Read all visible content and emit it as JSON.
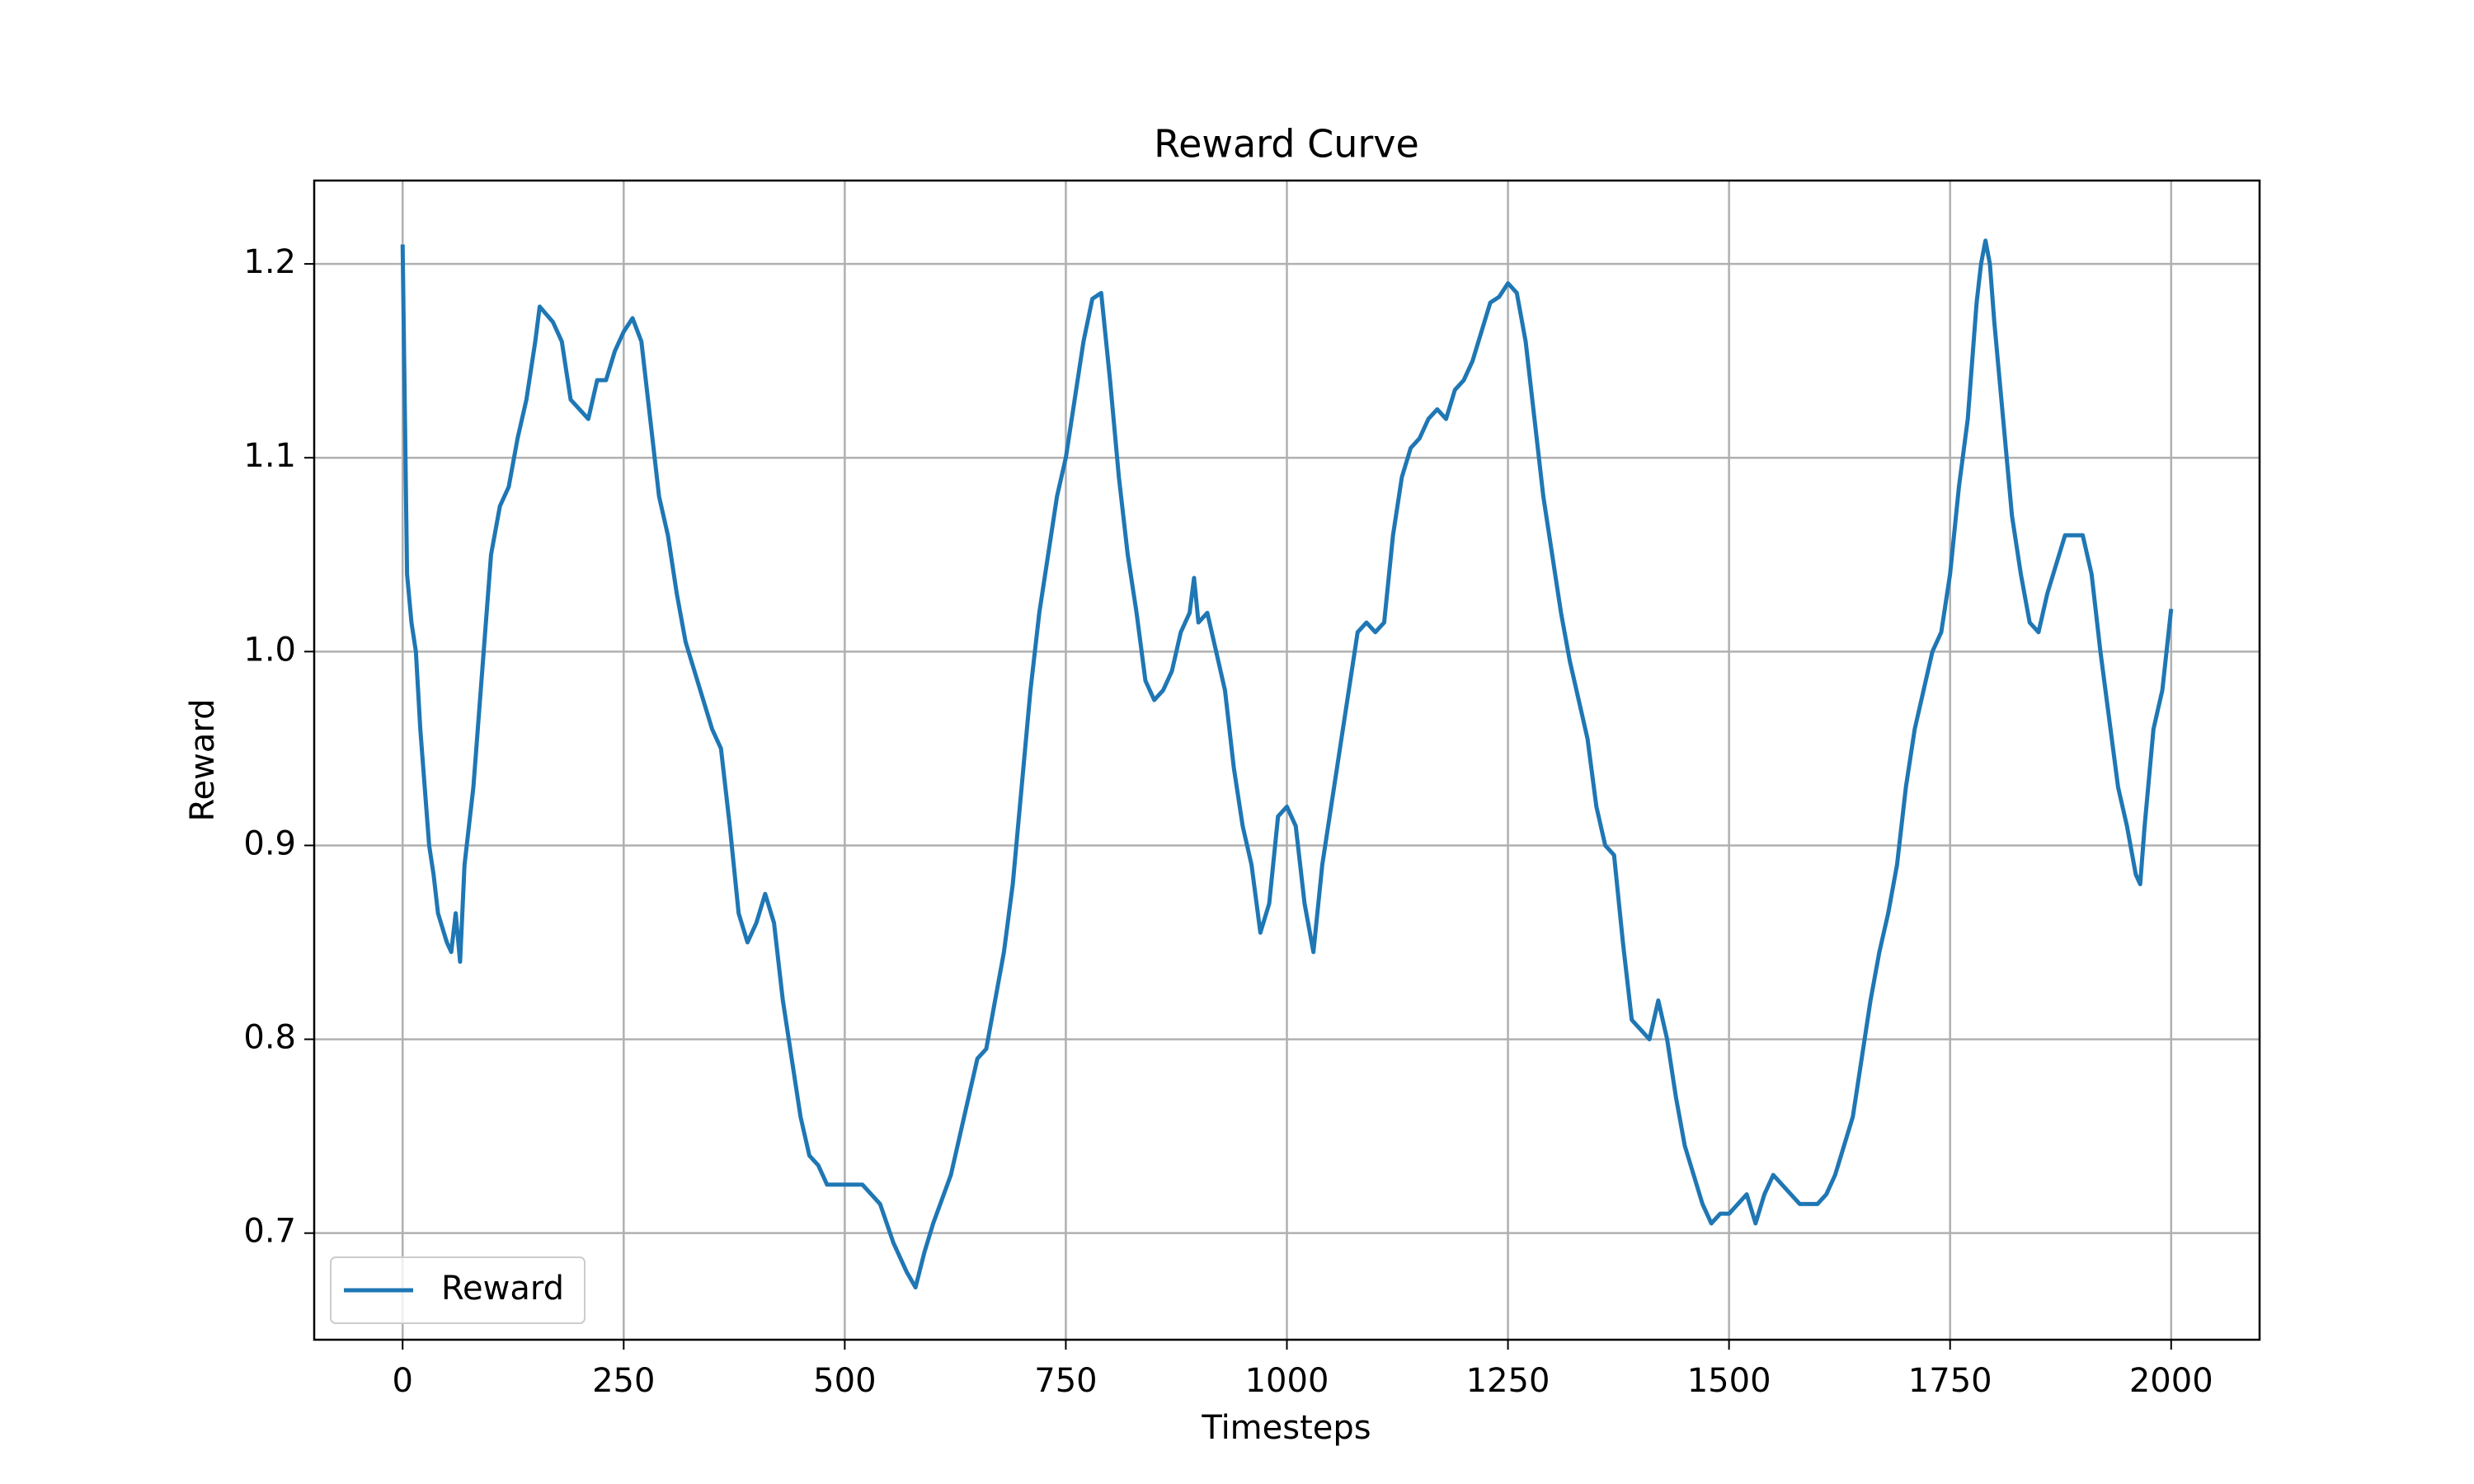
{
  "chart_data": {
    "type": "line",
    "title": "Reward Curve",
    "x_label": "Timesteps",
    "y_label": "Reward",
    "xlim": [
      -100,
      2100
    ],
    "ylim": [
      0.645,
      1.243
    ],
    "xticks": [
      0,
      250,
      500,
      750,
      1000,
      1250,
      1500,
      1750,
      2000
    ],
    "yticks": [
      0.7,
      0.8,
      0.9,
      {
        "value": 1,
        "label": "1.0"
      },
      1.1,
      1.2
    ],
    "grid": true,
    "legend": "lower left",
    "x": [
      0,
      5,
      10,
      15,
      20,
      25,
      30,
      35,
      40,
      50,
      55,
      60,
      65,
      70,
      80,
      90,
      100,
      110,
      120,
      130,
      140,
      150,
      155,
      170,
      180,
      190,
      200,
      210,
      220,
      230,
      240,
      250,
      260,
      270,
      280,
      290,
      300,
      310,
      320,
      330,
      340,
      350,
      360,
      370,
      380,
      390,
      400,
      410,
      420,
      430,
      440,
      450,
      460,
      470,
      480,
      500,
      520,
      540,
      555,
      570,
      580,
      590,
      600,
      620,
      640,
      650,
      660,
      670,
      680,
      690,
      700,
      710,
      720,
      730,
      740,
      750,
      760,
      770,
      780,
      790,
      800,
      810,
      820,
      830,
      840,
      850,
      860,
      870,
      880,
      890,
      895,
      900,
      910,
      920,
      930,
      940,
      950,
      960,
      970,
      980,
      990,
      1000,
      1010,
      1020,
      1030,
      1040,
      1050,
      1060,
      1070,
      1080,
      1090,
      1100,
      1110,
      1120,
      1130,
      1140,
      1150,
      1160,
      1170,
      1180,
      1190,
      1200,
      1210,
      1220,
      1230,
      1240,
      1250,
      1260,
      1270,
      1280,
      1290,
      1300,
      1310,
      1320,
      1330,
      1340,
      1350,
      1360,
      1370,
      1380,
      1390,
      1400,
      1410,
      1420,
      1430,
      1440,
      1450,
      1460,
      1470,
      1480,
      1490,
      1500,
      1510,
      1520,
      1530,
      1540,
      1550,
      1560,
      1570,
      1580,
      1590,
      1600,
      1610,
      1620,
      1640,
      1650,
      1660,
      1670,
      1680,
      1690,
      1700,
      1710,
      1720,
      1730,
      1740,
      1750,
      1760,
      1770,
      1780,
      1785,
      1790,
      1795,
      1800,
      1810,
      1820,
      1830,
      1840,
      1850,
      1860,
      1870,
      1880,
      1890,
      1900,
      1910,
      1920,
      1930,
      1940,
      1950,
      1960,
      1965,
      1970,
      1980,
      1990,
      2000
    ],
    "series": [
      {
        "name": "Reward",
        "color": "#1f77b4",
        "values": [
          1.21,
          1.04,
          1.015,
          1.0,
          0.96,
          0.93,
          0.9,
          0.885,
          0.865,
          0.85,
          0.845,
          0.865,
          0.84,
          0.89,
          0.93,
          0.99,
          1.05,
          1.075,
          1.085,
          1.11,
          1.13,
          1.16,
          1.178,
          1.17,
          1.16,
          1.13,
          1.125,
          1.12,
          1.14,
          1.14,
          1.155,
          1.165,
          1.172,
          1.16,
          1.12,
          1.08,
          1.06,
          1.03,
          1.005,
          0.99,
          0.975,
          0.96,
          0.95,
          0.91,
          0.865,
          0.85,
          0.86,
          0.875,
          0.86,
          0.82,
          0.79,
          0.76,
          0.74,
          0.735,
          0.725,
          0.725,
          0.725,
          0.715,
          0.695,
          0.68,
          0.672,
          0.69,
          0.705,
          0.73,
          0.77,
          0.79,
          0.795,
          0.82,
          0.845,
          0.88,
          0.93,
          0.98,
          1.02,
          1.05,
          1.08,
          1.1,
          1.13,
          1.16,
          1.182,
          1.185,
          1.14,
          1.09,
          1.05,
          1.02,
          0.985,
          0.975,
          0.98,
          0.99,
          1.01,
          1.02,
          1.038,
          1.015,
          1.02,
          1.0,
          0.98,
          0.94,
          0.91,
          0.89,
          0.855,
          0.87,
          0.915,
          0.92,
          0.91,
          0.87,
          0.845,
          0.89,
          0.92,
          0.95,
          0.98,
          1.01,
          1.015,
          1.01,
          1.015,
          1.06,
          1.09,
          1.105,
          1.11,
          1.12,
          1.125,
          1.12,
          1.135,
          1.14,
          1.15,
          1.165,
          1.18,
          1.183,
          1.19,
          1.185,
          1.16,
          1.12,
          1.08,
          1.05,
          1.02,
          0.995,
          0.975,
          0.955,
          0.92,
          0.9,
          0.895,
          0.85,
          0.81,
          0.805,
          0.8,
          0.82,
          0.8,
          0.77,
          0.745,
          0.73,
          0.715,
          0.705,
          0.71,
          0.71,
          0.715,
          0.72,
          0.705,
          0.72,
          0.73,
          0.725,
          0.72,
          0.715,
          0.715,
          0.715,
          0.72,
          0.73,
          0.76,
          0.79,
          0.82,
          0.845,
          0.865,
          0.89,
          0.93,
          0.96,
          0.98,
          1.0,
          1.01,
          1.04,
          1.085,
          1.12,
          1.18,
          1.2,
          1.212,
          1.2,
          1.17,
          1.12,
          1.07,
          1.04,
          1.015,
          1.01,
          1.03,
          1.045,
          1.06,
          1.06,
          1.06,
          1.04,
          1.0,
          0.965,
          0.93,
          0.91,
          0.885,
          0.88,
          0.91,
          0.96,
          0.98,
          1.022
        ]
      }
    ]
  }
}
